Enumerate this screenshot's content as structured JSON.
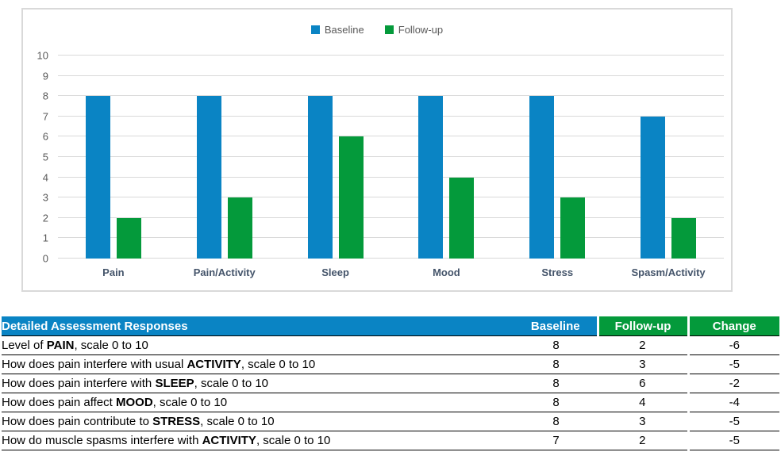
{
  "colors": {
    "blue": "#0A84C4",
    "green": "#049A3B",
    "change_cell": "#CDE4C5",
    "grid": "#D9D9D9",
    "axis_text": "#595959",
    "category_text": "#44546A",
    "row_border": "#000000"
  },
  "chart_data": {
    "type": "bar",
    "title": "",
    "xlabel": "",
    "ylabel": "",
    "categories": [
      "Pain",
      "Pain/Activity",
      "Sleep",
      "Mood",
      "Stress",
      "Spasm/Activity"
    ],
    "series": [
      {
        "name": "Baseline",
        "color": "#0A84C4",
        "values": [
          8,
          8,
          8,
          8,
          8,
          7
        ]
      },
      {
        "name": "Follow-up",
        "color": "#049A3B",
        "values": [
          2,
          3,
          6,
          4,
          3,
          2
        ]
      }
    ],
    "ylim": [
      0,
      10
    ],
    "y_tick_step": 1,
    "grid": true,
    "legend_position": "top-center"
  },
  "table": {
    "title": "Detailed Assessment Responses",
    "columns": [
      "Baseline",
      "Follow-up",
      "Change"
    ],
    "rows": [
      {
        "desc_prefix": "Level of ",
        "desc_keyword": "PAIN",
        "desc_suffix": ", scale 0 to 10",
        "baseline": "8",
        "followup": "2",
        "change": "-6"
      },
      {
        "desc_prefix": "How does pain interfere with usual ",
        "desc_keyword": "ACTIVITY",
        "desc_suffix": ", scale 0 to 10",
        "baseline": "8",
        "followup": "3",
        "change": "-5"
      },
      {
        "desc_prefix": "How does pain interfere with ",
        "desc_keyword": "SLEEP",
        "desc_suffix": ", scale 0 to 10",
        "baseline": "8",
        "followup": "6",
        "change": "-2"
      },
      {
        "desc_prefix": "How does pain affect ",
        "desc_keyword": "MOOD",
        "desc_suffix": ", scale 0 to 10",
        "baseline": "8",
        "followup": "4",
        "change": "-4"
      },
      {
        "desc_prefix": "How does pain contribute to ",
        "desc_keyword": "STRESS",
        "desc_suffix": ", scale 0 to 10",
        "baseline": "8",
        "followup": "3",
        "change": "-5"
      },
      {
        "desc_prefix": "How do muscle spasms interfere with ",
        "desc_keyword": "ACTIVITY",
        "desc_suffix": ", scale 0 to 10",
        "baseline": "7",
        "followup": "2",
        "change": "-5"
      }
    ]
  }
}
